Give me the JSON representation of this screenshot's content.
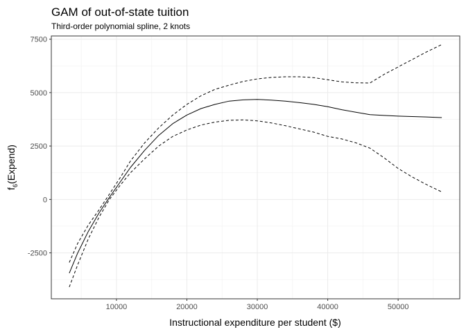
{
  "chart_data": {
    "type": "line",
    "title": "GAM of out-of-state tuition",
    "subtitle": "Third-order polynomial spline, 2 knots",
    "xlabel": "Instructional expenditure per student ($)",
    "ylabel": {
      "main": "f",
      "subscript": "6",
      "rest": "(Expend)"
    },
    "xlim": [
      750,
      58750
    ],
    "ylim": [
      -4650,
      7650
    ],
    "x_ticks": [
      10000,
      20000,
      30000,
      40000,
      50000
    ],
    "x_tick_labels": [
      "10000",
      "20000",
      "30000",
      "40000",
      "50000"
    ],
    "y_ticks": [
      -2500,
      0,
      2500,
      5000,
      7500
    ],
    "y_tick_labels": [
      "-2500",
      "0",
      "2500",
      "5000",
      "7500"
    ],
    "grid": true,
    "series": [
      {
        "role": "estimate",
        "line_style": "solid",
        "x": [
          3300,
          4500,
          6000,
          7500,
          9000,
          10500,
          12000,
          14000,
          16000,
          18000,
          20000,
          22000,
          24000,
          26000,
          28000,
          30000,
          32000,
          34000,
          36000,
          38000,
          40000,
          42000,
          44000,
          46000,
          48000,
          50000,
          52000,
          54000,
          56200
        ],
        "values": [
          -3450,
          -2500,
          -1500,
          -650,
          100,
          800,
          1500,
          2300,
          3000,
          3550,
          3950,
          4250,
          4450,
          4600,
          4660,
          4680,
          4650,
          4600,
          4530,
          4450,
          4340,
          4200,
          4080,
          3970,
          3930,
          3900,
          3880,
          3860,
          3830
        ]
      },
      {
        "role": "upper-band",
        "line_style": "dashed",
        "x": [
          3300,
          4500,
          6000,
          7500,
          9000,
          10500,
          12000,
          14000,
          16000,
          18000,
          20000,
          22000,
          24000,
          26000,
          28000,
          30000,
          32000,
          34000,
          36000,
          38000,
          40000,
          42000,
          44000,
          46000,
          48000,
          50000,
          52000,
          54000,
          56200
        ],
        "values": [
          -2950,
          -2050,
          -1200,
          -500,
          250,
          1000,
          1800,
          2650,
          3350,
          3950,
          4450,
          4850,
          5150,
          5350,
          5520,
          5640,
          5710,
          5740,
          5740,
          5700,
          5600,
          5500,
          5460,
          5450,
          5850,
          6200,
          6550,
          6900,
          7250
        ]
      },
      {
        "role": "lower-band",
        "line_style": "dashed",
        "x": [
          3300,
          4500,
          6000,
          7500,
          9000,
          10500,
          12000,
          14000,
          16000,
          18000,
          20000,
          22000,
          24000,
          26000,
          28000,
          30000,
          32000,
          34000,
          36000,
          38000,
          40000,
          42000,
          44000,
          46000,
          48000,
          50000,
          52000,
          54000,
          56200
        ],
        "values": [
          -4100,
          -3050,
          -1850,
          -850,
          0,
          650,
          1250,
          1900,
          2500,
          2950,
          3250,
          3480,
          3620,
          3700,
          3720,
          3680,
          3580,
          3450,
          3300,
          3150,
          2950,
          2830,
          2650,
          2400,
          1950,
          1450,
          1050,
          700,
          350
        ]
      }
    ]
  }
}
